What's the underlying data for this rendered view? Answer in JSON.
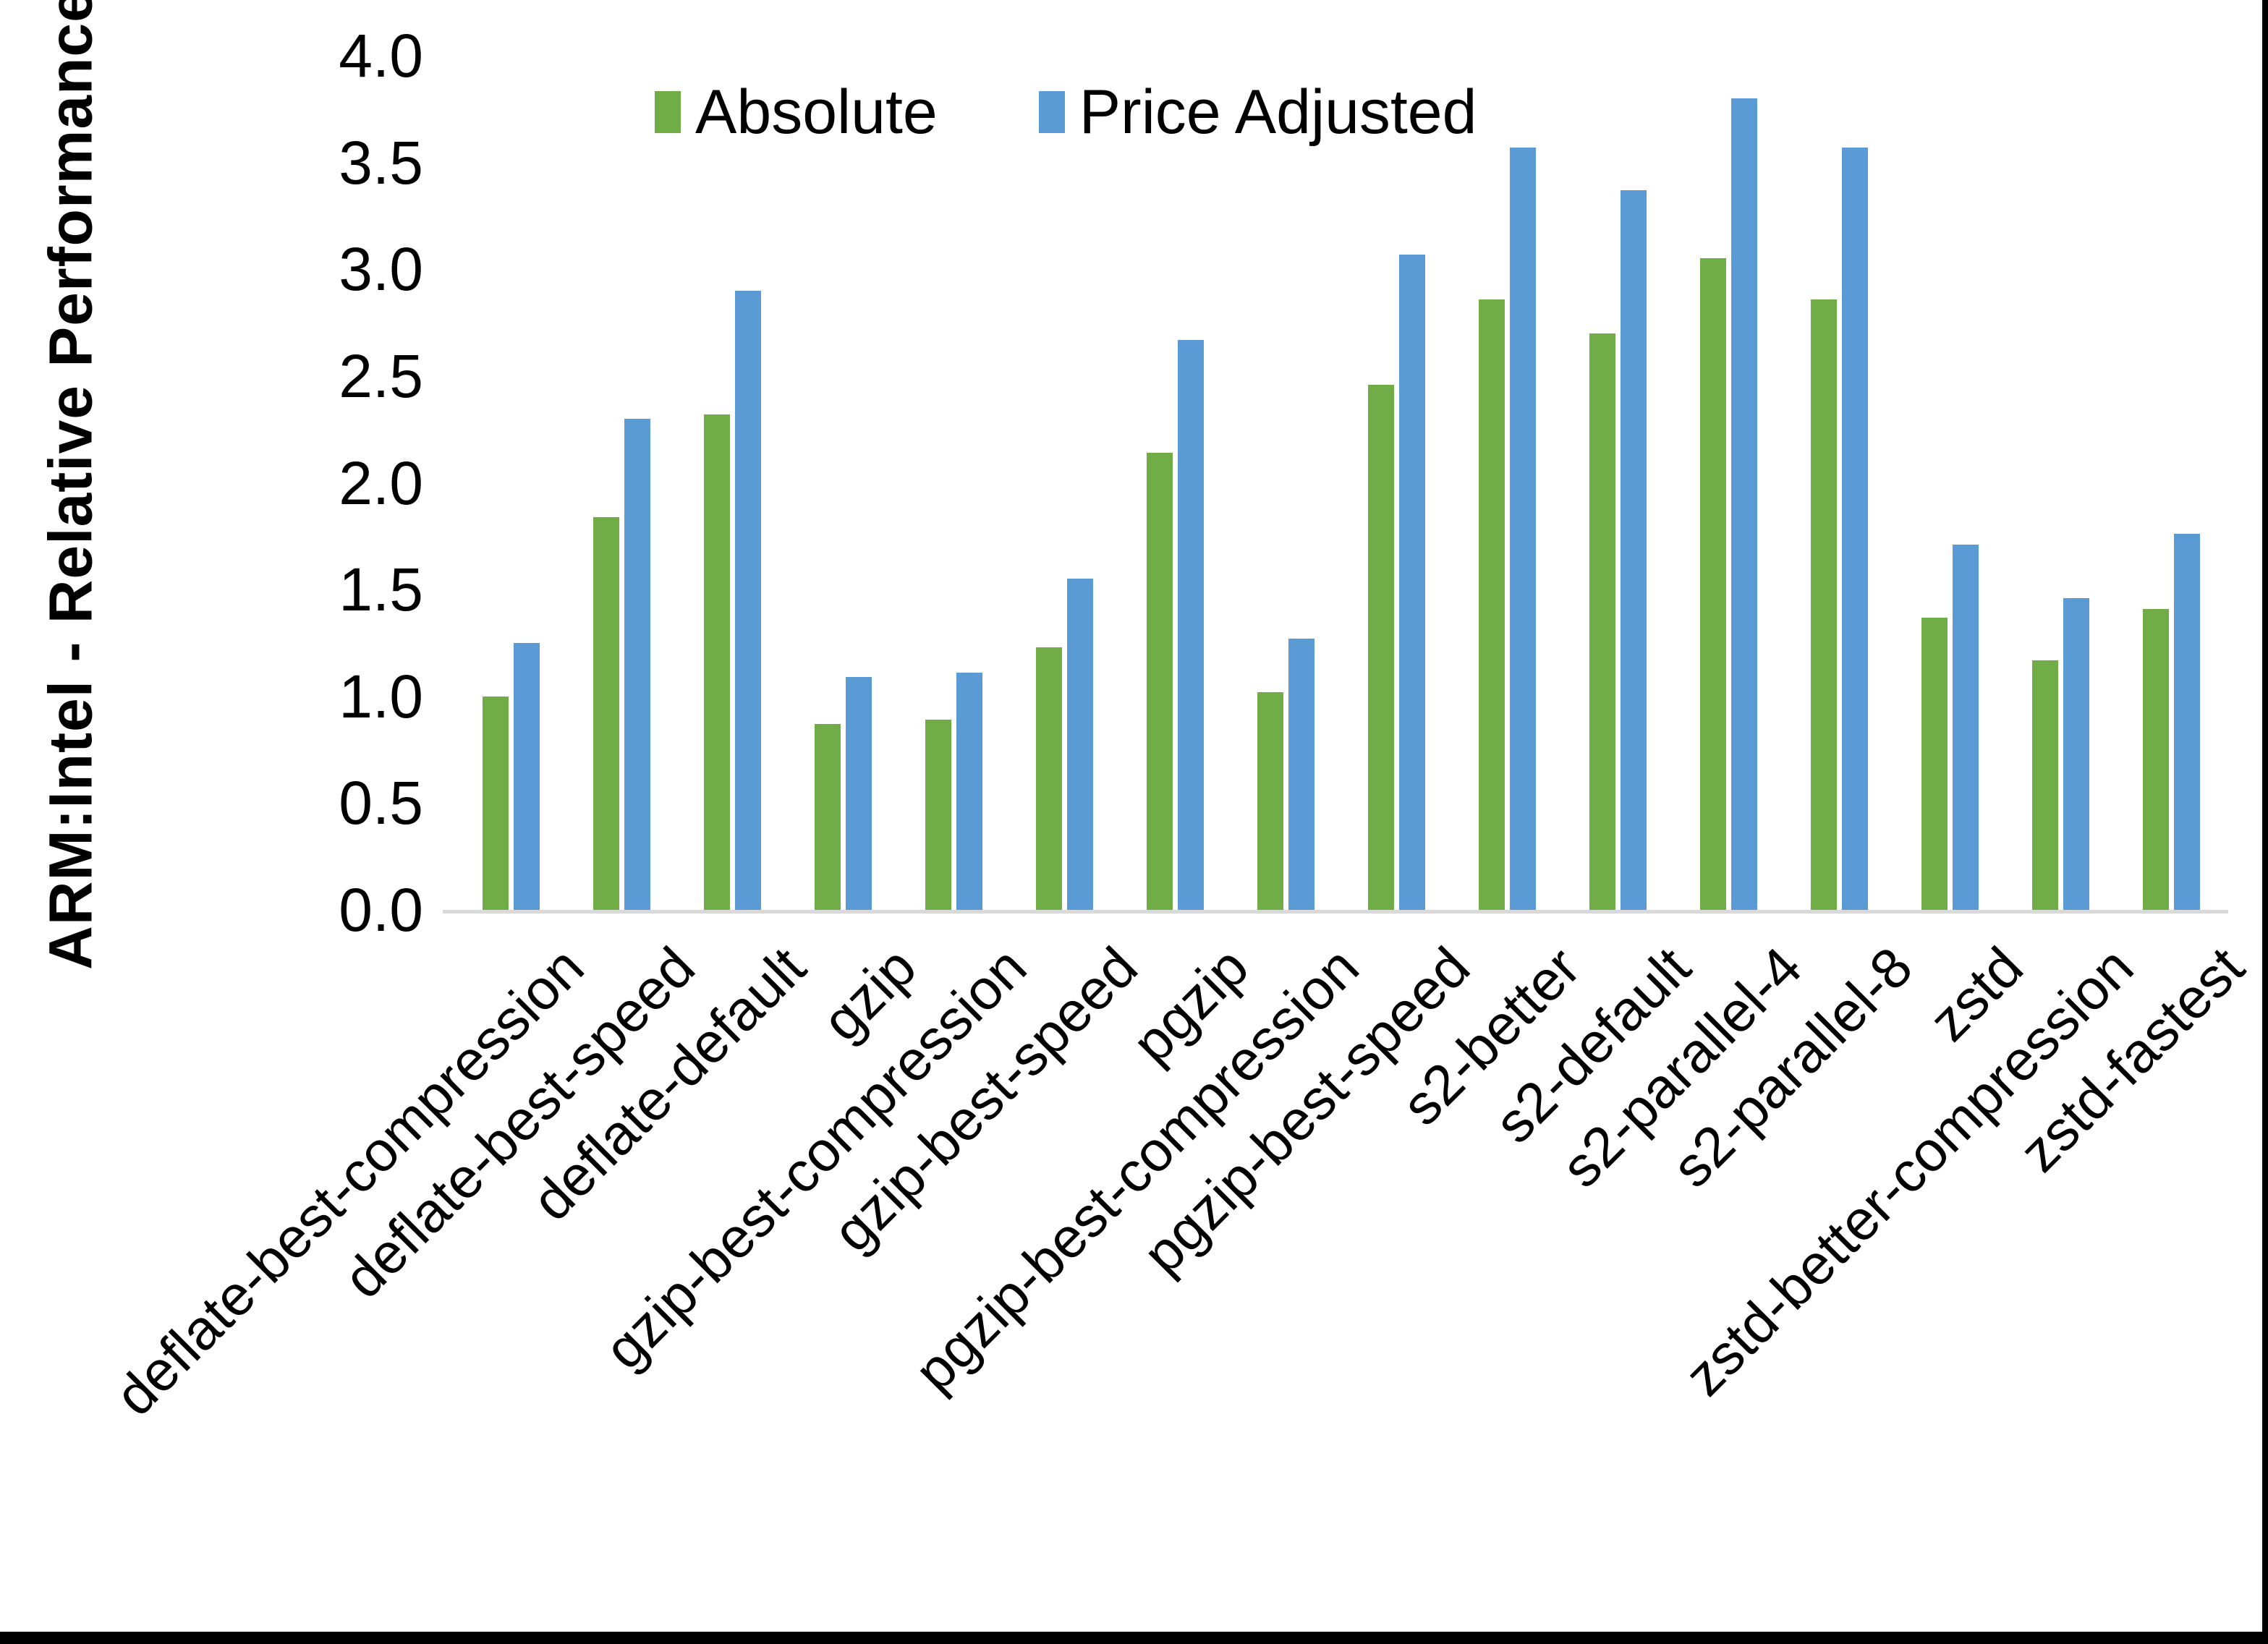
{
  "y_axis": {
    "title": "ARM:Intel - Relative Performance",
    "ticks": [
      "0.0",
      "0.5",
      "1.0",
      "1.5",
      "2.0",
      "2.5",
      "3.0",
      "3.5",
      "4.0"
    ]
  },
  "legend": {
    "items": [
      {
        "label": "Absolute",
        "color": "#70AD47"
      },
      {
        "label": "Price Adjusted",
        "color": "#5B9BD5"
      }
    ]
  },
  "chart_data": {
    "type": "bar",
    "title": "",
    "xlabel": "",
    "ylabel": "ARM:Intel - Relative Performance",
    "ylim": [
      0,
      4.0
    ],
    "ytick_step": 0.5,
    "grid": false,
    "legend_position": "top-center",
    "background": "#ffffff",
    "axis_line_color": "#d9d9d9",
    "categories": [
      "deflate-best-compression",
      "deflate-best-speed",
      "deflate-default",
      "gzip",
      "gzip-best-compression",
      "gzip-best-speed",
      "pgzip",
      "pgzip-best-compression",
      "pgzip-best-speed",
      "s2-better",
      "s2-default",
      "s2-parallel-4",
      "s2-parallel-8",
      "zstd",
      "zstd-better-compression",
      "zstd-fastest"
    ],
    "series": [
      {
        "name": "Absolute",
        "color": "#70AD47",
        "values": [
          1.0,
          1.84,
          2.32,
          0.87,
          0.89,
          1.23,
          2.14,
          1.02,
          2.46,
          2.86,
          2.7,
          3.05,
          2.86,
          1.37,
          1.17,
          1.41
        ]
      },
      {
        "name": "Price Adjusted",
        "color": "#5B9BD5",
        "values": [
          1.25,
          2.3,
          2.9,
          1.09,
          1.11,
          1.55,
          2.67,
          1.27,
          3.07,
          3.57,
          3.37,
          3.8,
          3.57,
          1.71,
          1.46,
          1.76
        ]
      }
    ]
  }
}
